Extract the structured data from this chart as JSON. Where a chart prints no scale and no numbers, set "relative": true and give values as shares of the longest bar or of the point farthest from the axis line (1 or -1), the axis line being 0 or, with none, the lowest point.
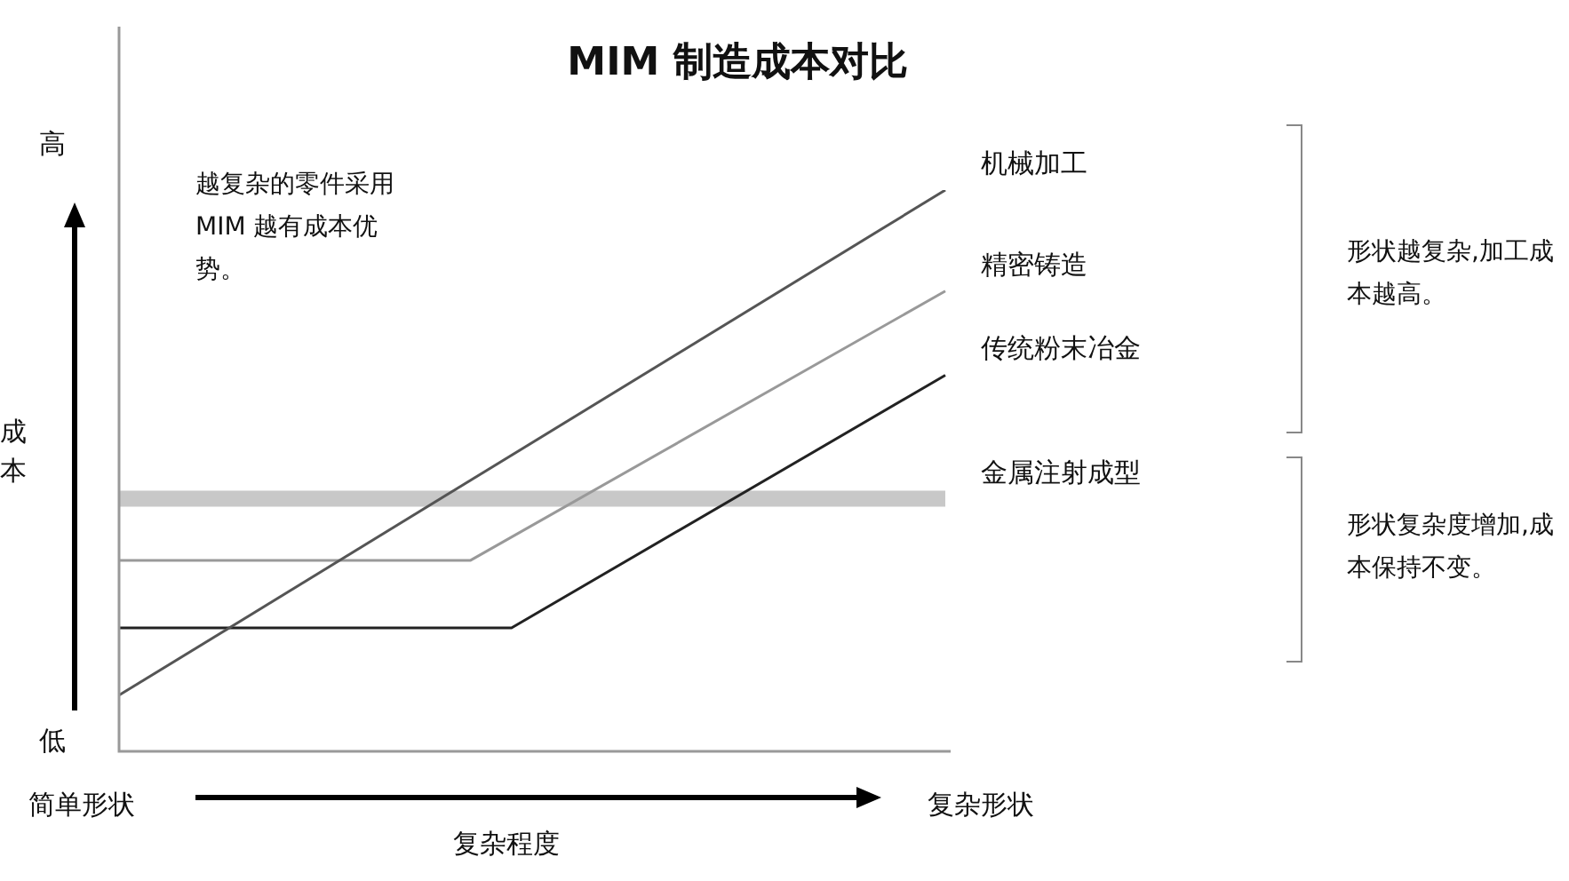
{
  "chart_data": {
    "type": "line",
    "relative": true,
    "title": "MIM 制造成本对比",
    "xlabel": "复杂程度",
    "ylabel": "成本",
    "categories": [
      null,
      null,
      null,
      null,
      null,
      null,
      null,
      null,
      null,
      null,
      null,
      null,
      null,
      null,
      null,
      null,
      null,
      null,
      null,
      null,
      null,
      null,
      null,
      null,
      null,
      null,
      null,
      null,
      null,
      null,
      null,
      null,
      null,
      null,
      null,
      null,
      null,
      null,
      null,
      null,
      null
    ],
    "series": [
      {
        "name": "机械加工",
        "color": "#555555",
        "values": [
          0.1,
          null,
          null,
          null,
          null,
          null,
          null,
          null,
          null,
          null,
          null,
          null,
          null,
          null,
          null,
          null,
          null,
          null,
          null,
          null,
          null,
          null,
          null,
          null,
          null,
          null,
          null,
          null,
          null,
          null,
          null,
          null,
          null,
          null,
          null,
          null,
          null,
          null,
          null,
          null,
          1
        ]
      },
      {
        "name": "精密铸造",
        "color": "#999999",
        "values": [
          0.34,
          null,
          null,
          null,
          null,
          null,
          null,
          null,
          null,
          null,
          null,
          null,
          null,
          null,
          null,
          null,
          null,
          0.34,
          null,
          null,
          null,
          null,
          null,
          null,
          null,
          null,
          null,
          null,
          null,
          null,
          null,
          null,
          null,
          null,
          null,
          null,
          null,
          null,
          null,
          null,
          0.82
        ]
      },
      {
        "name": "传统粉末冶金",
        "color": "#222222",
        "values": [
          0.22,
          null,
          null,
          null,
          null,
          null,
          null,
          null,
          null,
          null,
          null,
          null,
          null,
          null,
          null,
          null,
          null,
          null,
          null,
          0.22,
          null,
          null,
          null,
          null,
          null,
          null,
          null,
          null,
          null,
          null,
          null,
          null,
          null,
          null,
          null,
          null,
          null,
          null,
          null,
          null,
          0.67
        ]
      },
      {
        "name": "金属注射成型",
        "color": "#c8c8c8",
        "values": [
          0.45,
          null,
          null,
          null,
          null,
          null,
          null,
          null,
          null,
          null,
          null,
          null,
          null,
          null,
          null,
          null,
          null,
          null,
          null,
          null,
          null,
          null,
          null,
          null,
          null,
          null,
          null,
          null,
          null,
          null,
          null,
          null,
          null,
          null,
          null,
          null,
          null,
          null,
          null,
          null,
          0.45
        ]
      }
    ],
    "annotations": [
      "越复杂的零件采用 MIM 越有成本优势。",
      "形状越复杂,加工成本越高。",
      "形状复杂度增加,成本保持不变。",
      "高",
      "低",
      "简单形状",
      "复杂形状"
    ],
    "legend": false,
    "marker": "none",
    "line_style": "solid"
  }
}
